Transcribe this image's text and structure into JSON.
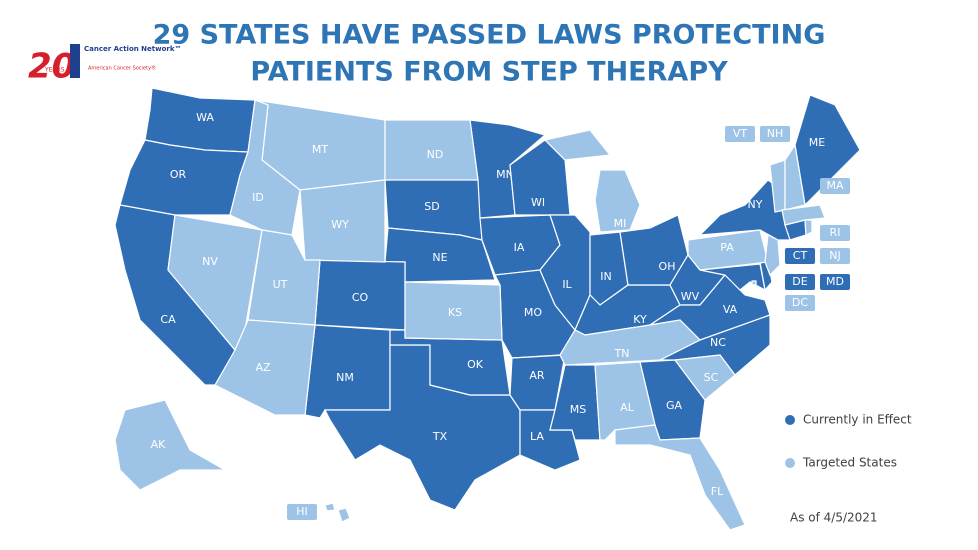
{
  "header": {
    "title_lines": [
      "29 STATES HAVE PASSED LAWS PROTECTING",
      "PATIENTS FROM STEP THERAPY"
    ]
  },
  "logo": {
    "number": "20",
    "years": "YEARS",
    "name": "Cancer Action Network™",
    "parent": "American Cancer Society®"
  },
  "legend": [
    {
      "label": "Currently in Effect",
      "color": "#2f6db5",
      "states": [
        "WA",
        "OR",
        "CA",
        "SD",
        "NE",
        "CO",
        "NM",
        "TX",
        "OK",
        "MN",
        "IA",
        "MO",
        "AR",
        "LA",
        "WI",
        "IL",
        "IN",
        "KY",
        "MS",
        "GA",
        "OH",
        "WV",
        "VA",
        "NC",
        "NY",
        "ME",
        "CT",
        "DE",
        "MD"
      ]
    },
    {
      "label": "Targeted States",
      "color": "#9dc3e6",
      "states": [
        "MT",
        "ID",
        "WY",
        "NV",
        "UT",
        "AZ",
        "ND",
        "KS",
        "MI",
        "TN",
        "AL",
        "SC",
        "FL",
        "PA",
        "VT",
        "NH",
        "MA",
        "RI",
        "NJ",
        "DC",
        "AK",
        "HI"
      ]
    }
  ],
  "footnote": "As of 4/5/2021"
}
